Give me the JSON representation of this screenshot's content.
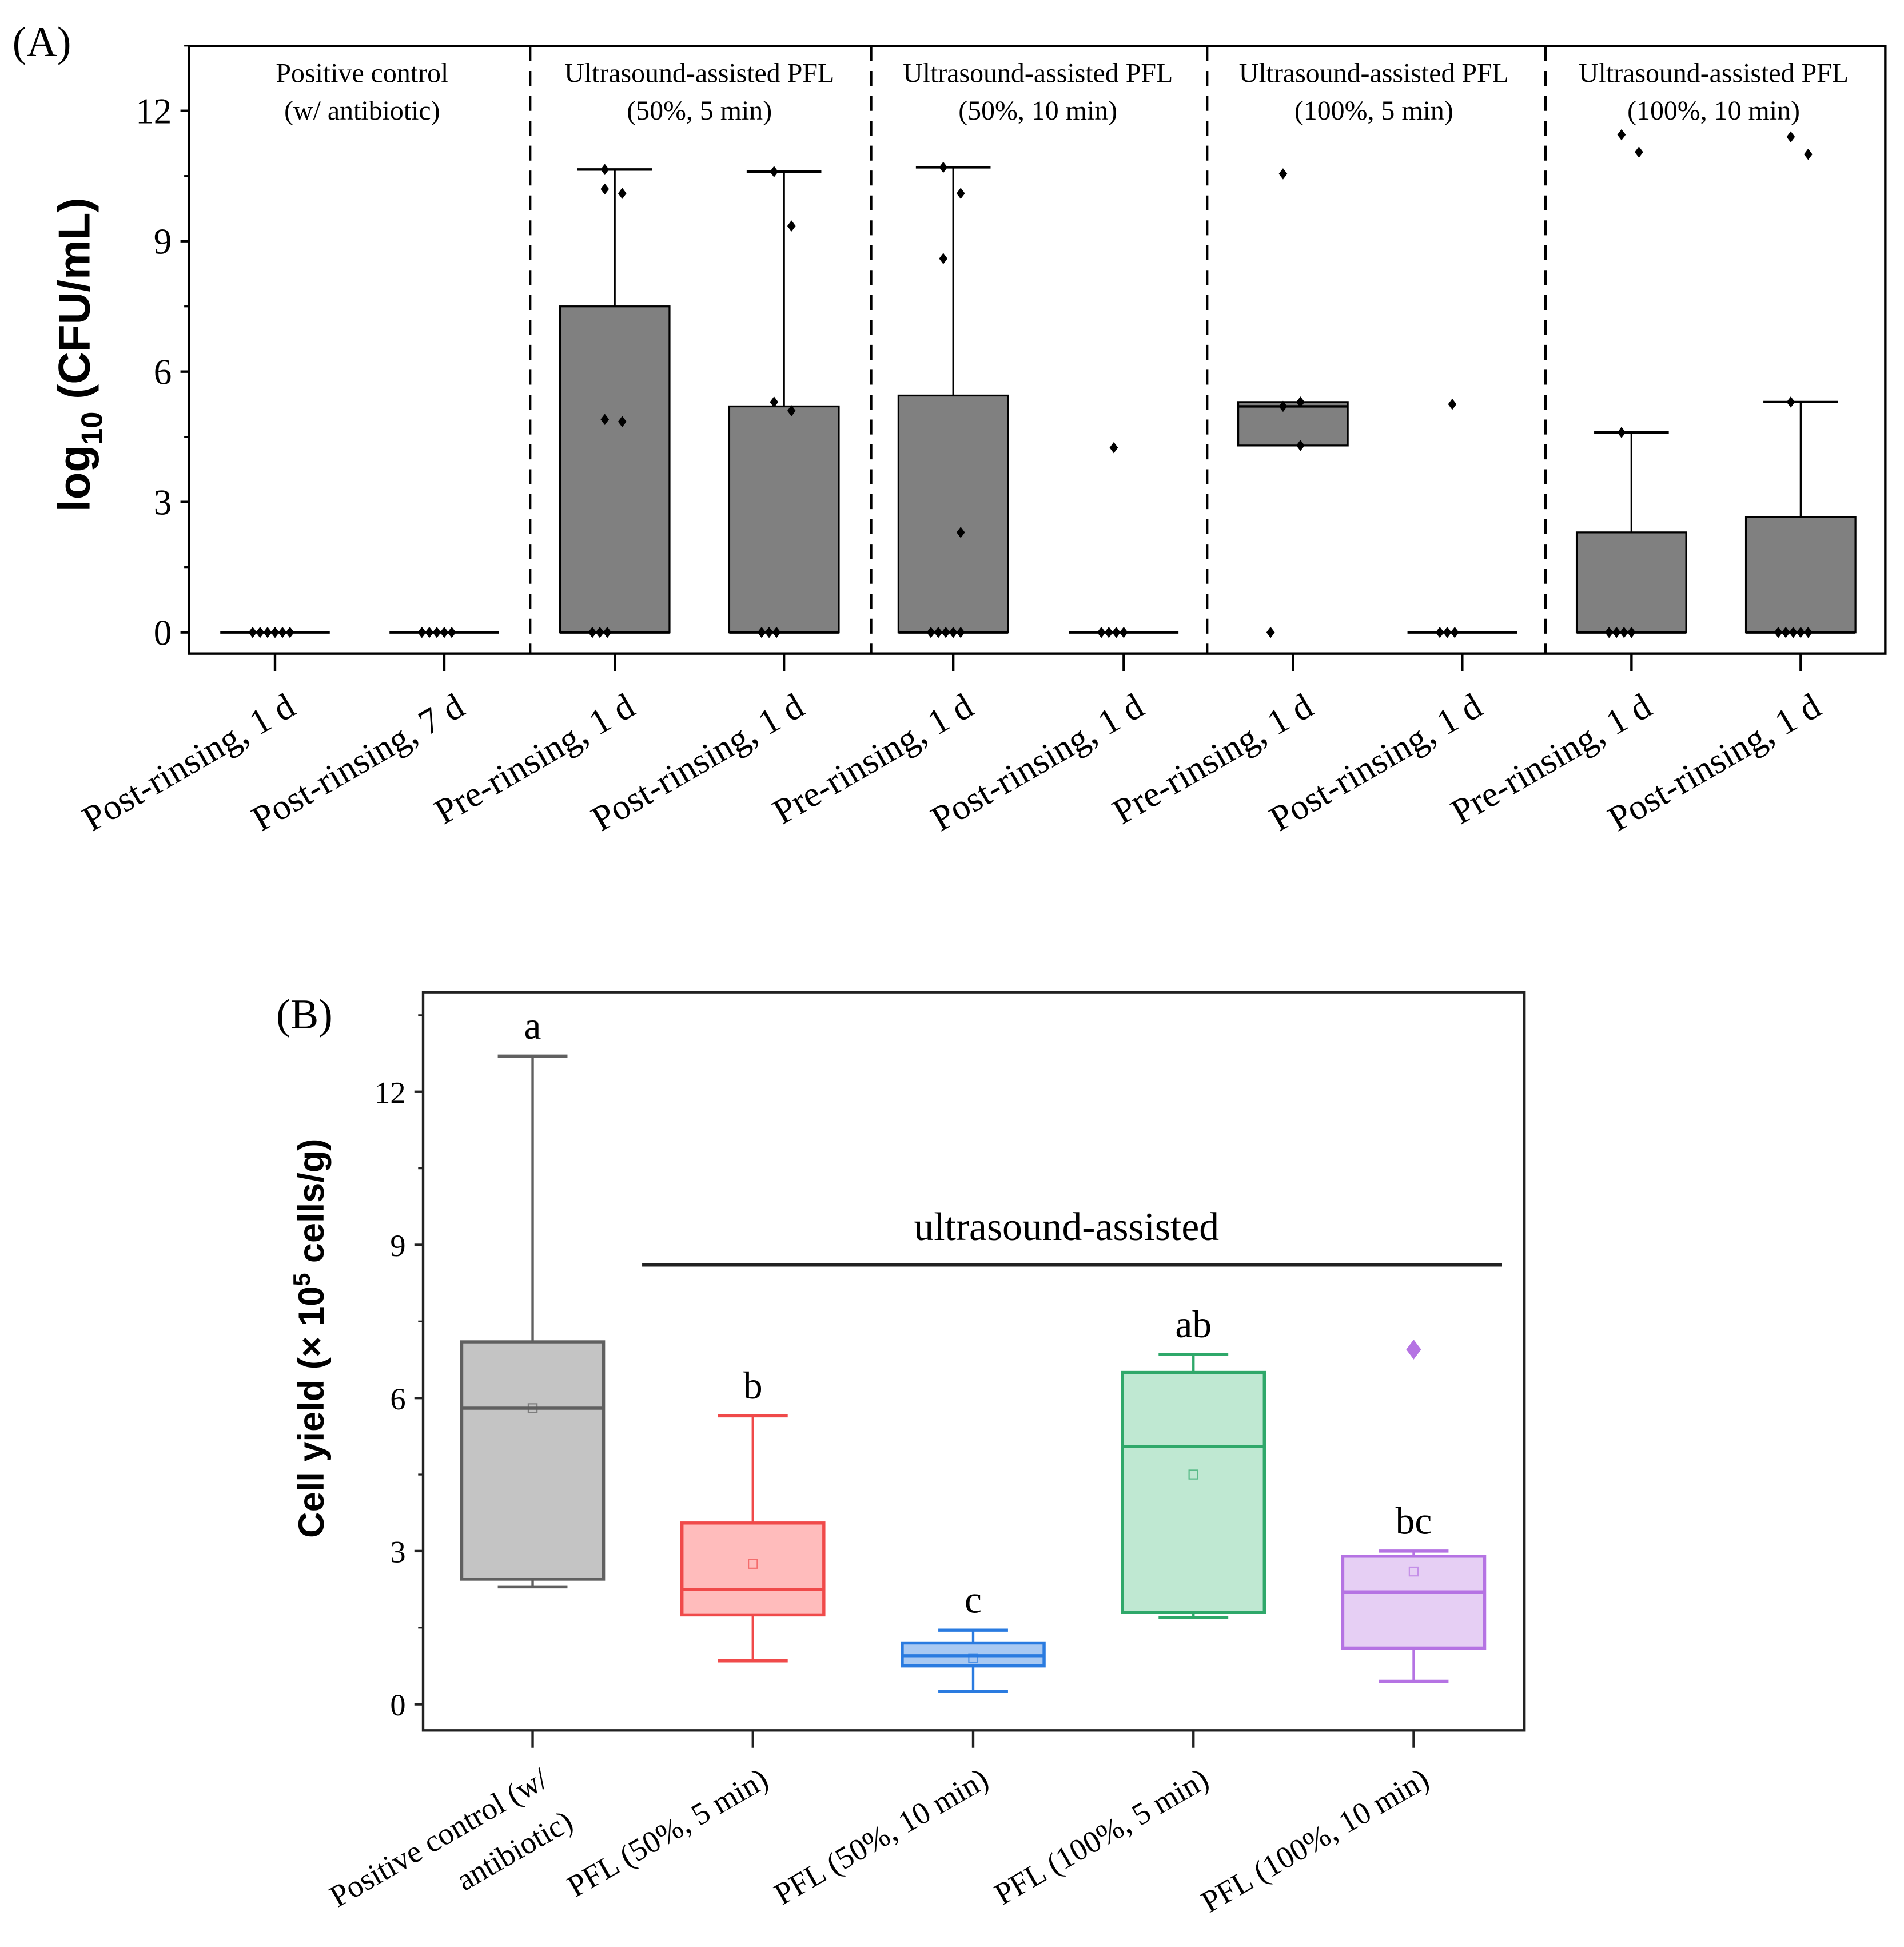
{
  "chart_data": [
    {
      "type": "box",
      "panel_label": "(A)",
      "ylabel": "log10 (CFU/mL)",
      "ylabel_main": "log",
      "ylabel_sub": "10",
      "ylabel_rest": " (CFU/mL)",
      "ylim": [
        -0.3,
        13.5
      ],
      "yticks": [
        0,
        3,
        6,
        9,
        12
      ],
      "groups": [
        {
          "title1": "Positive control",
          "title2": "(w/ antibiotic)"
        },
        {
          "title1": "Ultrasound-assisted PFL",
          "title2": "(50%, 5 min)"
        },
        {
          "title1": "Ultrasound-assisted PFL",
          "title2": "(50%, 10 min)"
        },
        {
          "title1": "Ultrasound-assisted PFL",
          "title2": "(100%, 5 min)"
        },
        {
          "title1": "Ultrasound-assisted PFL",
          "title2": "(100%, 10 min)"
        }
      ],
      "boxes": [
        {
          "label": "Post-rinsing, 1 d",
          "group": 0,
          "q1": 0,
          "median": 0,
          "q3": 0,
          "min": 0,
          "max": 0,
          "points": [
            0,
            0,
            0,
            0,
            0,
            0
          ]
        },
        {
          "label": "Post-rinsing, 7 d",
          "group": 0,
          "q1": 0,
          "median": 0,
          "q3": 0,
          "min": 0,
          "max": 0,
          "points": [
            0,
            0,
            0,
            0,
            0
          ]
        },
        {
          "label": "Pre-rinsing, 1 d",
          "group": 1,
          "q1": 0,
          "median": 0,
          "q3": 7.5,
          "min": 0,
          "max": 10.65,
          "points": [
            10.65,
            10.1,
            10.2,
            4.85,
            4.9,
            0,
            0,
            0
          ]
        },
        {
          "label": "Post-rinsing, 1 d",
          "group": 1,
          "q1": 0,
          "median": 0,
          "q3": 5.2,
          "min": 0,
          "max": 10.6,
          "points": [
            10.6,
            9.35,
            5.3,
            5.1,
            0,
            0,
            0
          ]
        },
        {
          "label": "Pre-rinsing, 1 d",
          "group": 2,
          "q1": 0,
          "median": 0,
          "q3": 5.45,
          "min": 0,
          "max": 10.7,
          "points": [
            10.7,
            10.1,
            8.6,
            2.3,
            0,
            0,
            0,
            0,
            0
          ]
        },
        {
          "label": "Post-rinsing, 1 d",
          "group": 2,
          "q1": 0,
          "median": 0,
          "q3": 0,
          "min": 0,
          "max": 0,
          "points": [
            4.25,
            0,
            0,
            0,
            0
          ]
        },
        {
          "label": "Pre-rinsing, 1 d",
          "group": 3,
          "q1": 4.3,
          "median": 5.2,
          "q3": 5.3,
          "min": 4.3,
          "max": 5.3,
          "points": [
            10.55,
            5.3,
            5.2,
            4.3,
            0
          ]
        },
        {
          "label": "Post-rinsing, 1 d",
          "group": 3,
          "q1": 0,
          "median": 0,
          "q3": 0,
          "min": 0,
          "max": 0,
          "points": [
            5.25,
            0,
            0,
            0
          ]
        },
        {
          "label": "Pre-rinsing, 1 d",
          "group": 4,
          "q1": 0,
          "median": 0,
          "q3": 2.3,
          "min": 0,
          "max": 4.6,
          "points": [
            11.45,
            11.05,
            4.6,
            0,
            0,
            0,
            0
          ]
        },
        {
          "label": "Post-rinsing, 1 d",
          "group": 4,
          "q1": 0,
          "median": 0,
          "q3": 2.65,
          "min": 0,
          "max": 5.3,
          "points": [
            11.4,
            11.0,
            5.3,
            0,
            0,
            0,
            0,
            0
          ]
        }
      ],
      "box_color": "#808080"
    },
    {
      "type": "box",
      "panel_label": "(B)",
      "ylabel_pre": "Cell yield (× 10",
      "ylabel_sup": "5",
      "ylabel_post": " cells/g)",
      "ylim": [
        -0.5,
        14
      ],
      "yticks": [
        0,
        3,
        6,
        9,
        12
      ],
      "annotation": "ultrasound-assisted",
      "boxes": [
        {
          "label1": "Positive control (w/",
          "label2": "antibiotic)",
          "letter": "a",
          "min": 2.3,
          "q1": 2.45,
          "median": 5.8,
          "mean": 5.8,
          "q3": 7.1,
          "max": 12.7,
          "outliers": [],
          "stroke": "#606060",
          "fill": "#c4c4c4"
        },
        {
          "label1": "PFL (50%, 5 min)",
          "label2": "",
          "letter": "b",
          "min": 0.85,
          "q1": 1.75,
          "median": 2.25,
          "mean": 2.75,
          "q3": 3.55,
          "max": 5.65,
          "outliers": [],
          "stroke": "#f04a4a",
          "fill": "#ffbcbc"
        },
        {
          "label1": "PFL (50%, 10 min)",
          "label2": "",
          "letter": "c",
          "min": 0.25,
          "q1": 0.75,
          "median": 0.95,
          "mean": 0.9,
          "q3": 1.2,
          "max": 1.45,
          "outliers": [],
          "stroke": "#2a7be0",
          "fill": "#a9c9f2"
        },
        {
          "label1": "PFL (100%, 5 min)",
          "label2": "",
          "letter": "ab",
          "min": 1.7,
          "q1": 1.8,
          "median": 5.05,
          "mean": 4.5,
          "q3": 6.5,
          "max": 6.85,
          "outliers": [],
          "stroke": "#2fa86a",
          "fill": "#bfe8d2"
        },
        {
          "label1": "PFL (100%, 10 min)",
          "label2": "",
          "letter": "bc",
          "min": 0.45,
          "q1": 1.1,
          "median": 2.2,
          "mean": 2.6,
          "q3": 2.9,
          "max": 3.0,
          "outliers": [
            6.95
          ],
          "stroke": "#b573e3",
          "fill": "#e6cff4"
        }
      ]
    }
  ]
}
